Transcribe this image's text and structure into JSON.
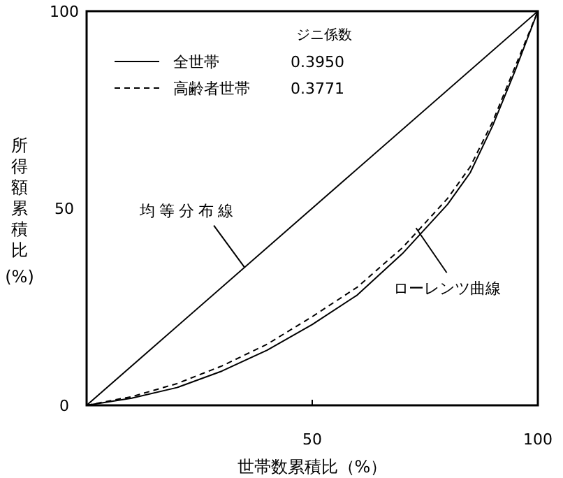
{
  "chart_data": {
    "type": "line",
    "legend_title": "ジニ係数",
    "xlabel": "世帯数累積比（%）",
    "ylabel": "所得額累積比(%)",
    "xlim": [
      0,
      100
    ],
    "ylim": [
      0,
      100
    ],
    "xticks": [
      50,
      100
    ],
    "yticks": [
      0,
      50,
      100
    ],
    "legend": "top left",
    "series": [
      {
        "name": "全世帯",
        "color": "#000000",
        "line_style": "solid",
        "x": [
          0,
          10,
          20,
          30,
          40,
          50,
          60,
          70,
          80,
          85,
          90,
          95,
          100
        ],
        "values": [
          0,
          1.8,
          4.5,
          8.7,
          14,
          20.5,
          28,
          38.5,
          51,
          59,
          71,
          85,
          100
        ]
      },
      {
        "name": "高齢者世帯",
        "color": "#000000",
        "line_style": "dashed",
        "x": [
          0,
          10,
          20,
          30,
          40,
          50,
          60,
          70,
          80,
          85,
          90,
          95,
          100
        ],
        "values": [
          0,
          2.2,
          5.5,
          10,
          15.5,
          22.5,
          30,
          40,
          52.5,
          60.5,
          72,
          86,
          100
        ]
      },
      {
        "name": "均等分布線",
        "color": "#000000",
        "x": [
          0,
          100
        ],
        "values": [
          0,
          100
        ]
      }
    ],
    "annotations": [
      "0.3950",
      "0.3771",
      {
        "text": "ローレンツ曲線",
        "x": 73,
        "y": 45
      }
    ]
  }
}
